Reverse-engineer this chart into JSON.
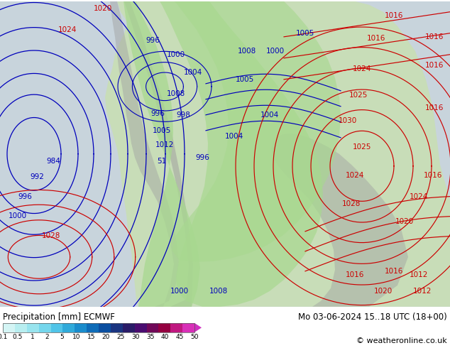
{
  "title_left": "Precipitation [mm] ECMWF",
  "title_right": "Mo 03-06-2024 15..18 UTC (18+00)",
  "copyright": "© weatheronline.co.uk",
  "colorbar_labels": [
    "0.1",
    "0.5",
    "1",
    "2",
    "5",
    "10",
    "15",
    "20",
    "25",
    "30",
    "35",
    "40",
    "45",
    "50"
  ],
  "cb_colors": [
    "#d4f5f5",
    "#b8eef0",
    "#98e4ee",
    "#74d6ec",
    "#50c4e8",
    "#30aada",
    "#1a8ccc",
    "#0e6cb8",
    "#0a4ea0",
    "#1a3480",
    "#2a1c68",
    "#4a0c70",
    "#700858",
    "#940040",
    "#c01880",
    "#d830b8"
  ],
  "map_bg": "#d0d0d0",
  "ocean_color": "#c8d4dc",
  "land_color": "#c8ddb8",
  "precip_green": "#a8d890",
  "gray_mountain": "#a0a0a0",
  "blue": "#0000bb",
  "red": "#cc0000",
  "white_bg": "#ffffff",
  "figsize": [
    6.34,
    4.9
  ],
  "dpi": 100,
  "blue_labels": [
    [
      75,
      205,
      "984"
    ],
    [
      52,
      183,
      "992"
    ],
    [
      35,
      155,
      "996"
    ],
    [
      25,
      128,
      "1000"
    ],
    [
      215,
      375,
      "996"
    ],
    [
      248,
      355,
      "1000"
    ],
    [
      272,
      330,
      "1004"
    ],
    [
      253,
      22,
      "1000"
    ],
    [
      308,
      22,
      "1008"
    ],
    [
      248,
      300,
      "1008"
    ],
    [
      258,
      270,
      "998"
    ],
    [
      222,
      272,
      "996"
    ],
    [
      228,
      248,
      "1005"
    ],
    [
      232,
      228,
      "1012"
    ],
    [
      228,
      205,
      "51"
    ],
    [
      285,
      210,
      "996"
    ],
    [
      330,
      240,
      "1004"
    ],
    [
      380,
      270,
      "1004"
    ],
    [
      345,
      320,
      "1005"
    ],
    [
      348,
      360,
      "1008"
    ],
    [
      388,
      360,
      "1000"
    ],
    [
      430,
      385,
      "1005"
    ]
  ],
  "red_labels": [
    [
      72,
      100,
      "1028"
    ],
    [
      95,
      390,
      "1024"
    ],
    [
      145,
      420,
      "1020"
    ],
    [
      500,
      45,
      "1016"
    ],
    [
      540,
      22,
      "1020"
    ],
    [
      590,
      45,
      "1012"
    ],
    [
      595,
      22,
      "1012"
    ],
    [
      495,
      145,
      "1028"
    ],
    [
      500,
      185,
      "1024"
    ],
    [
      510,
      225,
      "1025"
    ],
    [
      490,
      262,
      "1030"
    ],
    [
      505,
      298,
      "1025"
    ],
    [
      510,
      335,
      "1024"
    ],
    [
      530,
      378,
      "1016"
    ],
    [
      555,
      410,
      "1016"
    ],
    [
      570,
      120,
      "1020"
    ],
    [
      590,
      155,
      "1024"
    ],
    [
      610,
      185,
      "1016"
    ],
    [
      612,
      280,
      "1016"
    ],
    [
      612,
      340,
      "1016"
    ],
    [
      612,
      380,
      "1016"
    ],
    [
      555,
      50,
      "1016"
    ]
  ]
}
